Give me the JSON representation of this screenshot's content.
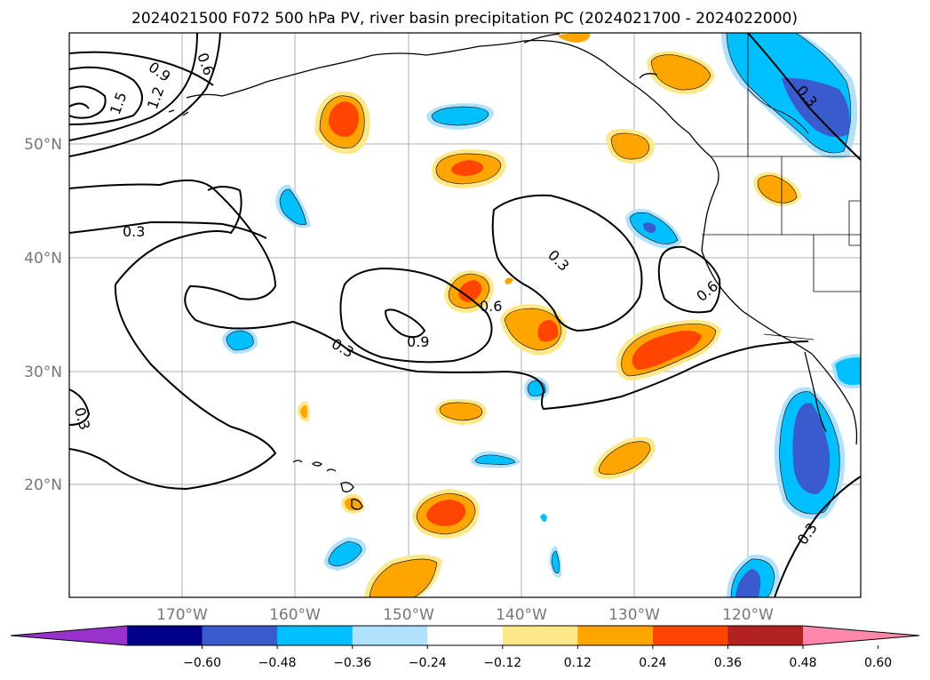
{
  "title": "2024021500 F072 500 hPa PV, river basin precipitation PC (2024021700 - 2024022000)",
  "lat_labels": [
    "50°N",
    "40°N",
    "30°N",
    "20°N"
  ],
  "lon_labels": [
    "170°W",
    "160°W",
    "150°W",
    "140°W",
    "130°W",
    "120°W"
  ],
  "pv_contour_labels": [
    "0.9",
    "0.6",
    "1.5",
    "1.2",
    "0.3",
    "0.3",
    "0.6",
    "0.9",
    "0.3",
    "0.3",
    "0.6",
    "0.3",
    "0.3"
  ],
  "colorbar": {
    "ticks": [
      "−0.60",
      "−0.48",
      "−0.36",
      "−0.24",
      "−0.12",
      "0.12",
      "0.24",
      "0.36",
      "0.48",
      "0.60"
    ],
    "colors": [
      "#9932cc",
      "#00008b",
      "#3a5bcd",
      "#00bfff",
      "#b0e2ff",
      "#ffffff",
      "#ffe88a",
      "#ffa500",
      "#ff4500",
      "#b22222",
      "#ff88aa"
    ]
  },
  "chart_data": {
    "type": "map",
    "projection": "lat-lon",
    "lon_range": [
      -180,
      -110
    ],
    "lat_range": [
      10,
      60
    ],
    "contour_field": "500 hPa PV",
    "contour_levels": [
      0.3,
      0.6,
      0.9,
      1.2,
      1.5
    ],
    "shaded_field": "river basin precipitation PC",
    "shading_levels": [
      -0.6,
      -0.48,
      -0.36,
      -0.24,
      -0.12,
      0.12,
      0.24,
      0.36,
      0.48,
      0.6
    ],
    "grid": true
  }
}
